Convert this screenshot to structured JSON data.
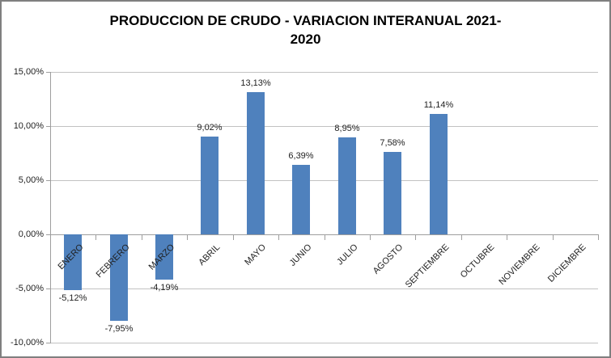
{
  "window": {
    "background_color": "#FFFFFF",
    "border_color": "#7F7F7F"
  },
  "chart_data": {
    "type": "bar",
    "title": "PRODUCCION DE CRUDO - VARIACION INTERANUAL 2021-2020",
    "title_lines": [
      "PRODUCCION DE CRUDO - VARIACION INTERANUAL 2021-",
      "2020"
    ],
    "categories": [
      "ENERO",
      "FEBRERO",
      "MARZO",
      "ABRIL",
      "MAYO",
      "JUNIO",
      "JULIO",
      "AGOSTO",
      "SEPTIEMBRE",
      "OCTUBRE",
      "NOVIEMBRE",
      "DICIEMBRE"
    ],
    "values": [
      -5.12,
      -7.95,
      -4.19,
      9.02,
      13.13,
      6.39,
      8.95,
      7.58,
      11.14,
      null,
      null,
      null
    ],
    "value_labels": [
      "-5,12%",
      "-7,95%",
      "-4,19%",
      "9,02%",
      "13,13%",
      "6,39%",
      "8,95%",
      "7,58%",
      "11,14%",
      null,
      null,
      null
    ],
    "xlabel": "",
    "ylabel": "",
    "y_axis": {
      "min": -10,
      "max": 15,
      "ticks": [
        {
          "value": 15,
          "label": "15,00%"
        },
        {
          "value": 10,
          "label": "10,00%"
        },
        {
          "value": 5,
          "label": "5,00%"
        },
        {
          "value": 0,
          "label": "0,00%"
        },
        {
          "value": -5,
          "label": "-5,00%"
        },
        {
          "value": -10,
          "label": "-10,00%"
        }
      ]
    },
    "grid": true,
    "legend": false,
    "bar_color": "#4F81BD",
    "gridline_color": "#C2C2C2",
    "axis_color": "#9E9E9E",
    "text_color": "#1F1F1F",
    "title_color": "#000000"
  }
}
